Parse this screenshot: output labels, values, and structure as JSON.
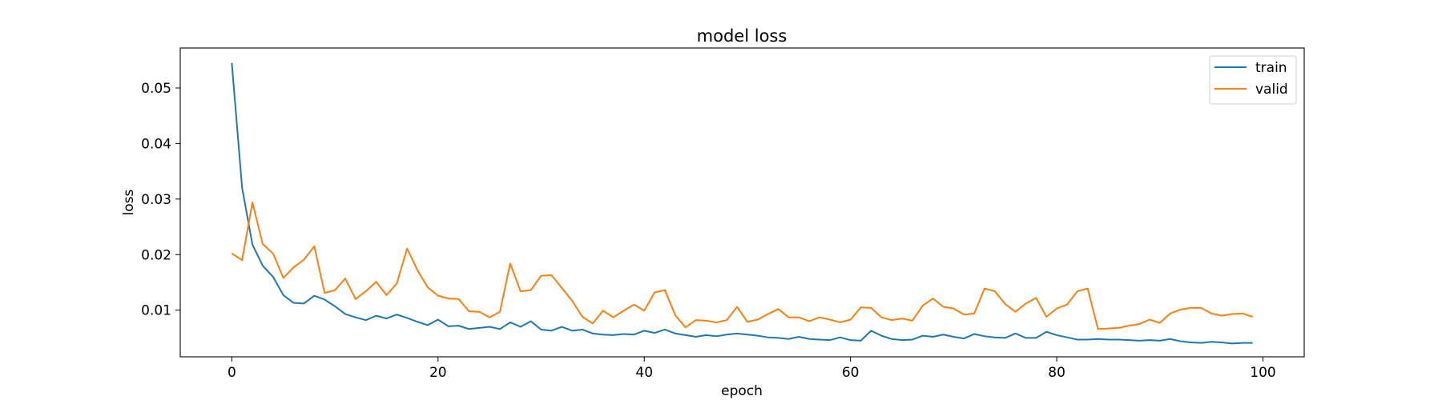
{
  "chart_data": {
    "type": "line",
    "title": "model loss",
    "xlabel": "epoch",
    "ylabel": "loss",
    "xlim": [
      -5,
      104
    ],
    "ylim": [
      0.0016,
      0.0572
    ],
    "xticks": [
      0,
      20,
      40,
      60,
      80,
      100
    ],
    "xtick_labels": [
      "0",
      "20",
      "40",
      "60",
      "80",
      "100"
    ],
    "yticks": [
      0.01,
      0.02,
      0.03,
      0.04,
      0.05
    ],
    "ytick_labels": [
      "0.01",
      "0.02",
      "0.03",
      "0.04",
      "0.05"
    ],
    "grid": false,
    "legend_position": "top-right",
    "series": [
      {
        "name": "train",
        "color": "#1f77b4",
        "values": [
          0.0545,
          0.032,
          0.0218,
          0.018,
          0.016,
          0.0127,
          0.0113,
          0.0112,
          0.0126,
          0.0119,
          0.0107,
          0.0093,
          0.0087,
          0.0082,
          0.009,
          0.0085,
          0.0092,
          0.0086,
          0.0079,
          0.0073,
          0.0083,
          0.0071,
          0.0072,
          0.0066,
          0.0068,
          0.007,
          0.0066,
          0.0078,
          0.007,
          0.008,
          0.0065,
          0.0063,
          0.007,
          0.0063,
          0.0065,
          0.0058,
          0.0056,
          0.0055,
          0.0057,
          0.0056,
          0.0063,
          0.0059,
          0.0065,
          0.0058,
          0.0055,
          0.0052,
          0.0055,
          0.0053,
          0.0056,
          0.0058,
          0.0056,
          0.0054,
          0.0051,
          0.005,
          0.0048,
          0.0052,
          0.0048,
          0.0047,
          0.0046,
          0.0051,
          0.0046,
          0.0045,
          0.0063,
          0.0054,
          0.0048,
          0.0046,
          0.0047,
          0.0054,
          0.0052,
          0.0056,
          0.0052,
          0.0049,
          0.0057,
          0.0053,
          0.0051,
          0.005,
          0.0058,
          0.005,
          0.005,
          0.0061,
          0.0055,
          0.0051,
          0.0047,
          0.0047,
          0.0048,
          0.0047,
          0.0047,
          0.0046,
          0.0045,
          0.0046,
          0.0045,
          0.0048,
          0.0044,
          0.0042,
          0.0041,
          0.0043,
          0.0042,
          0.004,
          0.0041,
          0.0041
        ]
      },
      {
        "name": "valid",
        "color": "#ff7f0e",
        "values": [
          0.0202,
          0.019,
          0.0294,
          0.0219,
          0.0202,
          0.0158,
          0.0177,
          0.0191,
          0.0215,
          0.0131,
          0.0136,
          0.0157,
          0.012,
          0.0134,
          0.0151,
          0.0127,
          0.0148,
          0.0211,
          0.0172,
          0.0141,
          0.0126,
          0.0121,
          0.012,
          0.0098,
          0.0097,
          0.0087,
          0.0097,
          0.0184,
          0.0134,
          0.0136,
          0.0162,
          0.0163,
          0.014,
          0.0117,
          0.0088,
          0.0076,
          0.0099,
          0.0087,
          0.0099,
          0.011,
          0.0099,
          0.0132,
          0.0136,
          0.0091,
          0.0069,
          0.0082,
          0.0081,
          0.0078,
          0.0082,
          0.0106,
          0.0079,
          0.0083,
          0.0093,
          0.0102,
          0.0087,
          0.0087,
          0.008,
          0.0087,
          0.0083,
          0.0078,
          0.0083,
          0.0105,
          0.0104,
          0.0087,
          0.0082,
          0.0085,
          0.0081,
          0.0108,
          0.0121,
          0.0106,
          0.0103,
          0.0092,
          0.0094,
          0.0139,
          0.0134,
          0.0111,
          0.0097,
          0.0112,
          0.0122,
          0.0088,
          0.0103,
          0.011,
          0.0134,
          0.0139,
          0.0066,
          0.0067,
          0.0068,
          0.0072,
          0.0075,
          0.0083,
          0.0077,
          0.0094,
          0.0101,
          0.0104,
          0.0104,
          0.0094,
          0.009,
          0.0093,
          0.0094,
          0.0088
        ]
      }
    ]
  }
}
